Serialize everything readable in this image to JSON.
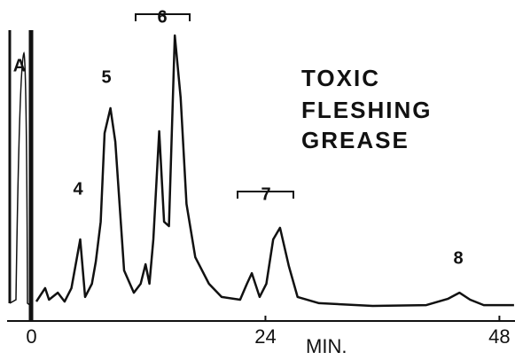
{
  "chart_data": {
    "type": "line",
    "title": [
      "TOXIC",
      "FLESHING",
      "GREASE"
    ],
    "x_label": "MIN.",
    "annotations": [
      "A",
      "4",
      "5",
      "6",
      "7",
      "8"
    ],
    "series": [
      {
        "color": "#111111",
        "x": [
          0.5,
          1.4,
          1.8,
          2.7,
          3.4,
          4.1,
          5.0,
          5.5,
          6.2,
          6.6,
          7.1,
          7.5,
          8.1,
          8.6,
          9.5,
          10.5,
          11.2,
          11.7,
          12.1,
          12.5,
          13.1,
          13.6,
          14.1,
          14.7,
          15.3,
          15.9,
          16.8,
          18.2,
          19.5,
          21.4,
          22.1,
          22.6,
          23.4,
          24.1,
          24.8,
          25.5,
          26.4,
          27.3,
          29.5,
          35,
          40.5,
          42.7,
          43.9,
          45,
          46.4,
          49.5
        ],
        "values": [
          1.6,
          6.6,
          2.3,
          4.9,
          1.6,
          6.6,
          24.6,
          3.3,
          8.2,
          16.4,
          31.1,
          63.9,
          73.1,
          60.7,
          13.1,
          4.9,
          8.2,
          15.4,
          8.2,
          24.6,
          64.6,
          31.1,
          29.5,
          100,
          77,
          37.7,
          18,
          8.2,
          3.3,
          2.3,
          8.2,
          12.1,
          3.3,
          8.2,
          24.6,
          28.9,
          14.8,
          3.3,
          1,
          0,
          0.3,
          2.6,
          4.9,
          2.3,
          0.3,
          0.3
        ]
      }
    ],
    "xlim": [
      -2.5,
      49.6
    ],
    "ylim": [
      0,
      100
    ],
    "xticks": [
      0,
      24,
      48
    ]
  }
}
